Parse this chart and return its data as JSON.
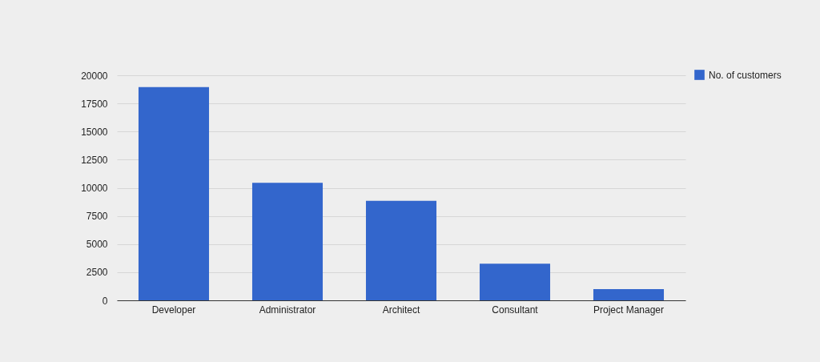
{
  "chart_data": {
    "type": "bar",
    "categories": [
      "Developer",
      "Administrator",
      "Architect",
      "Consultant",
      "Project Manager"
    ],
    "series": [
      {
        "name": "No. of customers",
        "color": "#3366cc",
        "values": [
          18950,
          10450,
          8850,
          3250,
          1000
        ]
      }
    ],
    "ylim": [
      0,
      20000
    ],
    "yticks": [
      0,
      2500,
      5000,
      7500,
      10000,
      12500,
      15000,
      17500,
      20000
    ],
    "grid": "y",
    "legend": "top right"
  }
}
